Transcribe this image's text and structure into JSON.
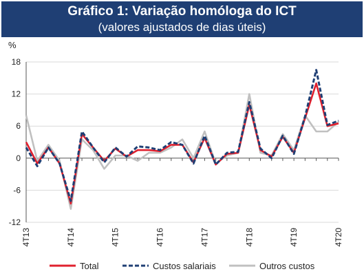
{
  "chart_data": {
    "type": "line",
    "title": "Gráfico 1: Variação homóloga do ICT",
    "subtitle": "(valores ajustados de dias úteis)",
    "ylabel": "%",
    "ylim": [
      -12,
      18
    ],
    "yticks": [
      -12,
      -6,
      0,
      6,
      12,
      18
    ],
    "grid": true,
    "legend_position": "bottom",
    "x_tick_labels": [
      "4T13",
      "4T14",
      "4T15",
      "4T16",
      "4T17",
      "4T18",
      "4T19",
      "4T20"
    ],
    "x_tick_indices": [
      0,
      4,
      8,
      12,
      16,
      20,
      24,
      28
    ],
    "series": [
      {
        "name": "Total",
        "color": "#e0202e",
        "style": "solid",
        "values": [
          3.0,
          -1.0,
          2.0,
          -1.0,
          -8.5,
          4.5,
          2.0,
          -0.5,
          1.8,
          0.3,
          1.5,
          1.5,
          1.3,
          2.5,
          2.5,
          -0.8,
          3.8,
          -1.2,
          0.8,
          1.0,
          10.0,
          1.5,
          0.3,
          4.0,
          1.0,
          7.5,
          14.0,
          6.0,
          6.5
        ]
      },
      {
        "name": "Custos salariais",
        "color": "#1f3f74",
        "style": "dashed",
        "values": [
          2.0,
          -1.5,
          2.0,
          -1.0,
          -8.0,
          5.0,
          2.0,
          -0.8,
          2.0,
          0.3,
          2.2,
          2.0,
          1.5,
          3.0,
          2.5,
          -1.0,
          4.2,
          -1.2,
          1.0,
          1.2,
          10.5,
          1.8,
          0.0,
          4.2,
          0.8,
          7.8,
          16.5,
          6.2,
          7.0
        ]
      },
      {
        "name": "Outros custos",
        "color": "#c0c0c0",
        "style": "solid",
        "values": [
          8.0,
          -0.5,
          2.5,
          -0.5,
          -9.5,
          3.5,
          1.5,
          -2.0,
          0.5,
          0.5,
          -0.5,
          1.0,
          1.0,
          2.0,
          3.5,
          0.0,
          5.0,
          -1.0,
          0.5,
          1.0,
          12.0,
          1.0,
          0.5,
          4.5,
          1.5,
          8.0,
          5.0,
          5.0,
          6.8
        ]
      }
    ]
  }
}
